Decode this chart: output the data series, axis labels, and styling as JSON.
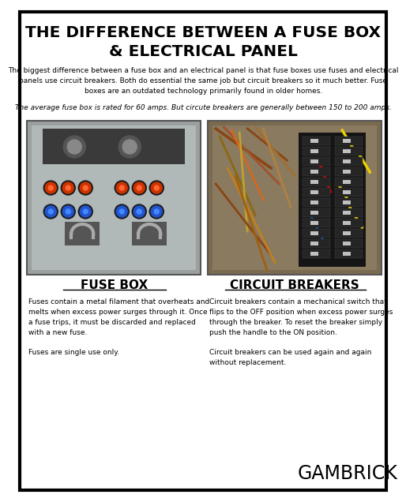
{
  "title_line1": "THE DIFFERENCE BETWEEN A FUSE BOX",
  "title_line2": "& ELECTRICAL PANEL",
  "intro_text": "The biggest difference between a fuse box and an electrical panel is that fuse boxes use fuses and electrical\npanels use circuit breakers. Both do essential the same job but circuit breakers so it much better. Fuse\nboxes are an outdated technology primarily found in older homes.",
  "avg_text": "The average fuse box is rated for 60 amps. But circute breakers are generally between 150 to 200 amps.",
  "label_left": "FUSE BOX",
  "label_right": "CIRCUIT BREAKERS",
  "desc_left": "Fuses contain a metal filament that overheats and\nmelts when excess power surges through it. Once\na fuse trips, it must be discarded and replaced\nwith a new fuse.\n\nFuses are single use only.",
  "desc_right": "Circuit breakers contain a mechanical switch that\nflips to the OFF position when excess power surges\nthrough the breaker. To reset the breaker simply\npush the handle to the ON position.\n\nCircuit breakers can be used again and again\nwithout replacement.",
  "brand": "GAMBRICK",
  "bg_color": "#ffffff",
  "border_color": "#000000",
  "title_color": "#000000",
  "text_color": "#000000",
  "img_left_bg": "#8a9090",
  "img_right_bg": "#7a6a50",
  "fuse_colors_row1": [
    "#cc4400",
    "#cc4400",
    "#cc4400",
    "#2244aa",
    "#2244aa",
    "#2244aa"
  ],
  "fuse_colors_row2": [
    "#2244aa",
    "#2244aa",
    "#2244aa",
    "#cc4400",
    "#cc4400",
    "#cc4400"
  ]
}
